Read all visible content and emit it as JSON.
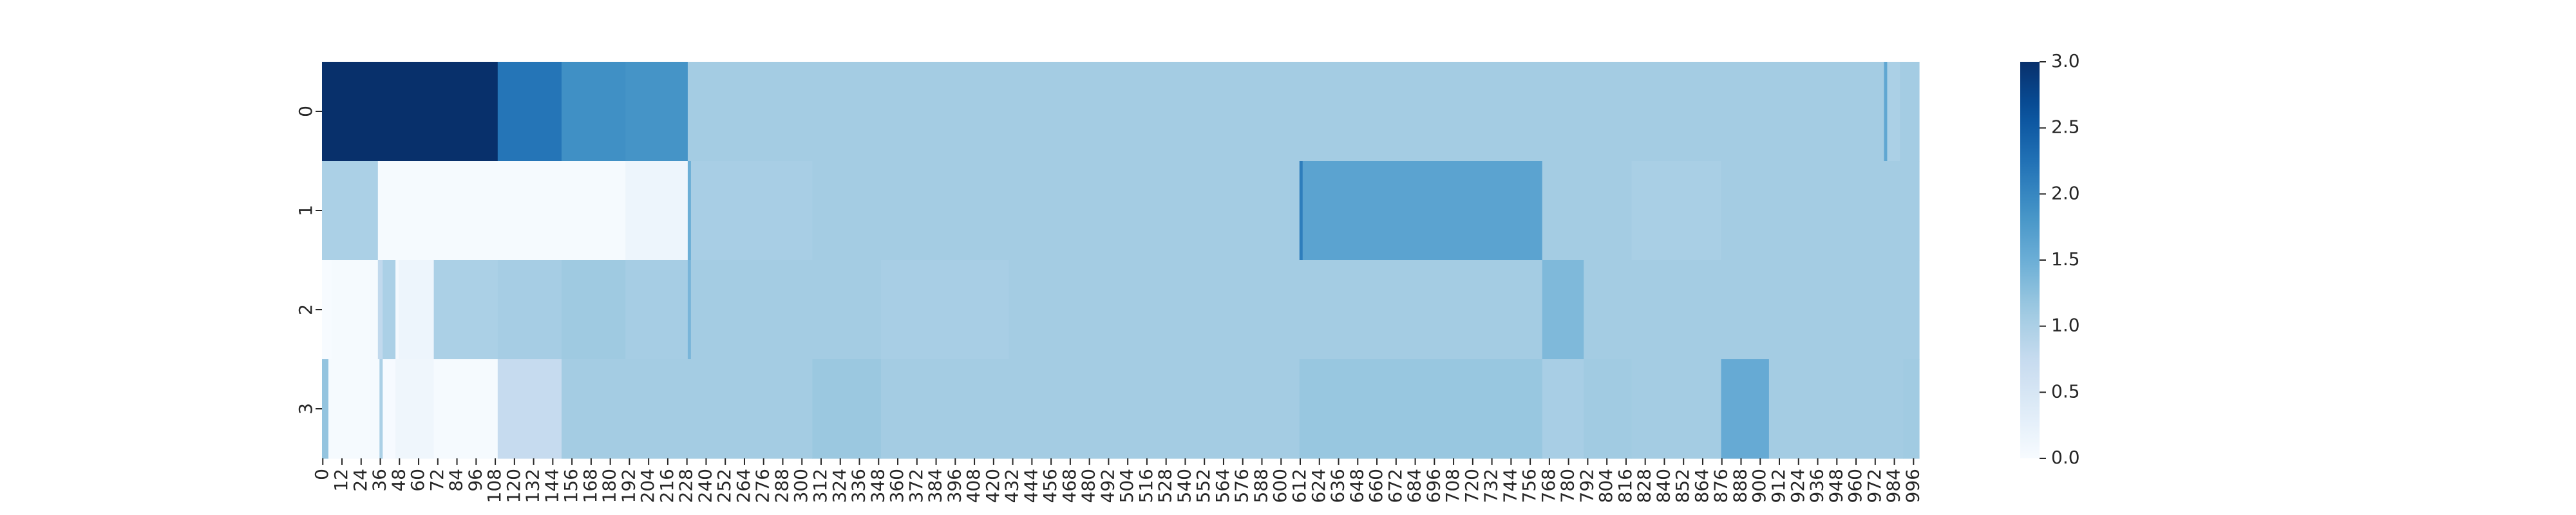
{
  "chart_data": {
    "type": "heatmap",
    "title": "",
    "xlabel": "",
    "ylabel": "",
    "colormap": "Blues",
    "colorbar": {
      "min": 0.0,
      "max": 3.0,
      "ticks": [
        "0.0",
        "0.5",
        "1.0",
        "1.5",
        "2.0",
        "2.5",
        "3.0"
      ]
    },
    "y_tick_labels": [
      "0",
      "1",
      "2",
      "3"
    ],
    "x_tick_labels": [
      "0",
      "12",
      "24",
      "36",
      "48",
      "60",
      "72",
      "84",
      "96",
      "108",
      "120",
      "132",
      "144",
      "156",
      "168",
      "180",
      "192",
      "204",
      "216",
      "228",
      "240",
      "252",
      "264",
      "276",
      "288",
      "300",
      "312",
      "324",
      "336",
      "348",
      "360",
      "372",
      "384",
      "396",
      "408",
      "420",
      "432",
      "444",
      "456",
      "468",
      "480",
      "492",
      "504",
      "516",
      "528",
      "540",
      "552",
      "564",
      "576",
      "588",
      "600",
      "612",
      "624",
      "636",
      "648",
      "660",
      "672",
      "684",
      "696",
      "708",
      "720",
      "732",
      "744",
      "756",
      "768",
      "780",
      "792",
      "804",
      "816",
      "828",
      "840",
      "852",
      "864",
      "876",
      "888",
      "900",
      "912",
      "924",
      "936",
      "948",
      "960",
      "972",
      "984",
      "996"
    ],
    "x_range": [
      0,
      1000
    ],
    "rows": [
      {
        "row": "0",
        "segments": [
          {
            "start": 0,
            "end": 110,
            "value": 3.0
          },
          {
            "start": 110,
            "end": 150,
            "value": 2.2
          },
          {
            "start": 150,
            "end": 190,
            "value": 1.9
          },
          {
            "start": 190,
            "end": 229,
            "value": 1.85
          },
          {
            "start": 229,
            "end": 978,
            "value": 1.07
          },
          {
            "start": 978,
            "end": 980,
            "value": 1.6
          },
          {
            "start": 980,
            "end": 988,
            "value": 1.0
          },
          {
            "start": 988,
            "end": 1000,
            "value": 1.07
          }
        ]
      },
      {
        "row": "1",
        "segments": [
          {
            "start": 0,
            "end": 35,
            "value": 1.0
          },
          {
            "start": 35,
            "end": 190,
            "value": 0.03
          },
          {
            "start": 190,
            "end": 229,
            "value": 0.15
          },
          {
            "start": 229,
            "end": 231,
            "value": 1.5
          },
          {
            "start": 231,
            "end": 307,
            "value": 1.03
          },
          {
            "start": 307,
            "end": 612,
            "value": 1.07
          },
          {
            "start": 612,
            "end": 614,
            "value": 2.1
          },
          {
            "start": 614,
            "end": 764,
            "value": 1.65
          },
          {
            "start": 764,
            "end": 820,
            "value": 1.07
          },
          {
            "start": 820,
            "end": 876,
            "value": 1.02
          },
          {
            "start": 876,
            "end": 1000,
            "value": 1.07
          }
        ]
      },
      {
        "row": "2",
        "segments": [
          {
            "start": 0,
            "end": 6,
            "value": 0.0
          },
          {
            "start": 6,
            "end": 35,
            "value": 0.03
          },
          {
            "start": 35,
            "end": 38,
            "value": 0.8
          },
          {
            "start": 38,
            "end": 46,
            "value": 1.0
          },
          {
            "start": 46,
            "end": 48,
            "value": 0.05
          },
          {
            "start": 48,
            "end": 70,
            "value": 0.15
          },
          {
            "start": 70,
            "end": 110,
            "value": 1.0
          },
          {
            "start": 110,
            "end": 150,
            "value": 1.05
          },
          {
            "start": 150,
            "end": 190,
            "value": 1.12
          },
          {
            "start": 190,
            "end": 229,
            "value": 1.05
          },
          {
            "start": 229,
            "end": 231,
            "value": 1.4
          },
          {
            "start": 231,
            "end": 350,
            "value": 1.07
          },
          {
            "start": 350,
            "end": 430,
            "value": 1.03
          },
          {
            "start": 430,
            "end": 764,
            "value": 1.07
          },
          {
            "start": 764,
            "end": 790,
            "value": 1.35
          },
          {
            "start": 790,
            "end": 1000,
            "value": 1.07
          }
        ]
      },
      {
        "row": "3",
        "segments": [
          {
            "start": 0,
            "end": 4,
            "value": 1.2
          },
          {
            "start": 4,
            "end": 36,
            "value": 0.03
          },
          {
            "start": 36,
            "end": 38,
            "value": 1.0
          },
          {
            "start": 38,
            "end": 46,
            "value": 0.02
          },
          {
            "start": 46,
            "end": 70,
            "value": 0.12
          },
          {
            "start": 70,
            "end": 110,
            "value": 0.03
          },
          {
            "start": 110,
            "end": 150,
            "value": 0.75
          },
          {
            "start": 150,
            "end": 307,
            "value": 1.07
          },
          {
            "start": 307,
            "end": 350,
            "value": 1.15
          },
          {
            "start": 350,
            "end": 612,
            "value": 1.07
          },
          {
            "start": 612,
            "end": 764,
            "value": 1.17
          },
          {
            "start": 764,
            "end": 790,
            "value": 1.03
          },
          {
            "start": 790,
            "end": 820,
            "value": 1.1
          },
          {
            "start": 820,
            "end": 876,
            "value": 1.07
          },
          {
            "start": 876,
            "end": 906,
            "value": 1.55
          },
          {
            "start": 906,
            "end": 990,
            "value": 1.07
          },
          {
            "start": 990,
            "end": 1000,
            "value": 1.1
          }
        ]
      }
    ]
  }
}
